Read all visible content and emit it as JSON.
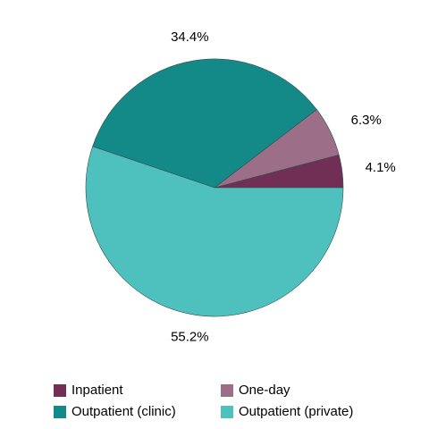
{
  "chart_data": {
    "type": "pie",
    "categories": [
      "Inpatient",
      "One-day",
      "Outpatient (clinic)",
      "Outpatient (private)"
    ],
    "values": [
      4.1,
      6.3,
      34.4,
      55.2
    ],
    "value_labels": [
      "4.1%",
      "6.3%",
      "34.4%",
      "55.2%"
    ],
    "colors": [
      "#722f55",
      "#9c6e87",
      "#148a88",
      "#4ec1be"
    ],
    "start_angle": 0,
    "direction": "counterclockwise"
  }
}
